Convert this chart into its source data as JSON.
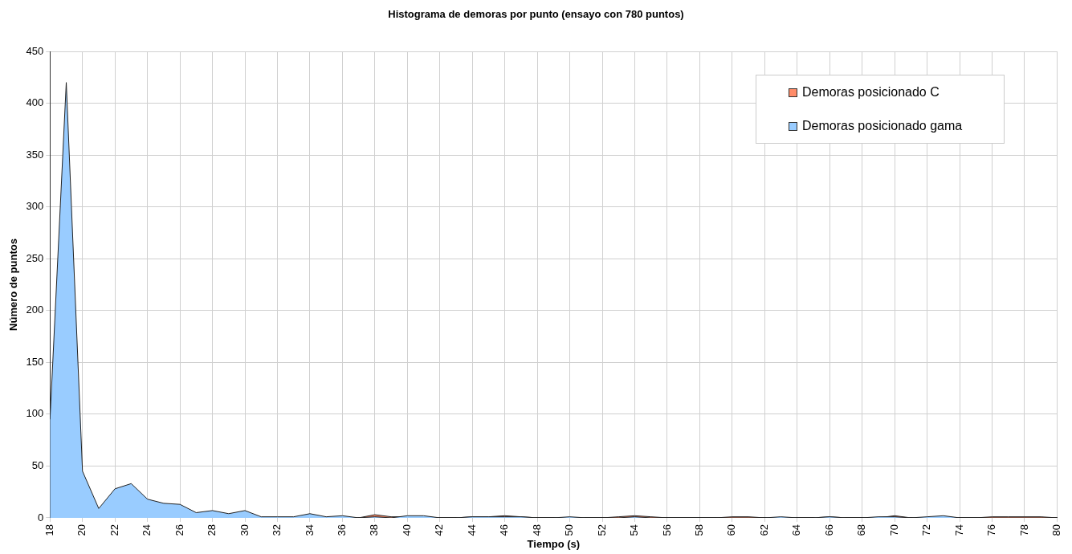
{
  "chart_data": {
    "type": "area",
    "title": "Histograma de demoras por punto (ensayo con 780 puntos)",
    "xlabel": "Tiempo (s)",
    "ylabel": "Número de puntos",
    "x": [
      18,
      19,
      20,
      21,
      22,
      23,
      24,
      25,
      26,
      27,
      28,
      29,
      30,
      31,
      32,
      33,
      34,
      35,
      36,
      37,
      38,
      39,
      40,
      41,
      42,
      43,
      44,
      45,
      46,
      47,
      48,
      49,
      50,
      51,
      52,
      53,
      54,
      55,
      56,
      57,
      58,
      59,
      60,
      61,
      62,
      63,
      64,
      65,
      66,
      67,
      68,
      69,
      70,
      71,
      72,
      73,
      74,
      75,
      76,
      77,
      78,
      79,
      80
    ],
    "series": [
      {
        "name": "Demoras posicionado C",
        "color": "#ff8c69",
        "values": [
          null,
          null,
          null,
          null,
          null,
          null,
          null,
          null,
          null,
          null,
          null,
          null,
          null,
          null,
          null,
          null,
          null,
          null,
          null,
          0,
          3,
          1,
          1,
          1,
          0,
          0,
          1,
          1,
          2,
          1,
          0,
          0,
          0,
          0,
          0,
          1,
          2,
          1,
          0,
          0,
          0,
          0,
          1,
          1,
          0,
          0,
          0,
          0,
          1,
          0,
          0,
          0,
          2,
          0,
          0,
          1,
          0,
          0,
          1,
          1,
          1,
          1,
          0
        ]
      },
      {
        "name": "Demoras posicionado gama",
        "color": "#99ccff",
        "values": [
          95,
          420,
          45,
          9,
          28,
          33,
          18,
          14,
          13,
          5,
          7,
          4,
          7,
          1,
          1,
          1,
          4,
          1,
          2,
          0,
          1,
          0,
          2,
          2,
          0,
          0,
          1,
          1,
          1,
          1,
          0,
          0,
          1,
          0,
          0,
          0,
          1,
          0,
          0,
          0,
          0,
          0,
          0,
          0,
          0,
          1,
          0,
          0,
          1,
          0,
          0,
          1,
          1,
          0,
          1,
          2,
          0,
          0,
          0,
          0,
          0,
          0,
          0
        ]
      }
    ],
    "xlim": [
      18,
      80
    ],
    "xticks": [
      18,
      20,
      22,
      24,
      26,
      28,
      30,
      32,
      34,
      36,
      38,
      40,
      42,
      44,
      46,
      48,
      50,
      52,
      54,
      56,
      58,
      60,
      62,
      64,
      66,
      68,
      70,
      72,
      74,
      76,
      78,
      80
    ],
    "ylim": [
      0,
      450
    ],
    "yticks": [
      0,
      50,
      100,
      150,
      200,
      250,
      300,
      350,
      400,
      450
    ],
    "grid": true,
    "legend": "top right",
    "marker": "none"
  }
}
